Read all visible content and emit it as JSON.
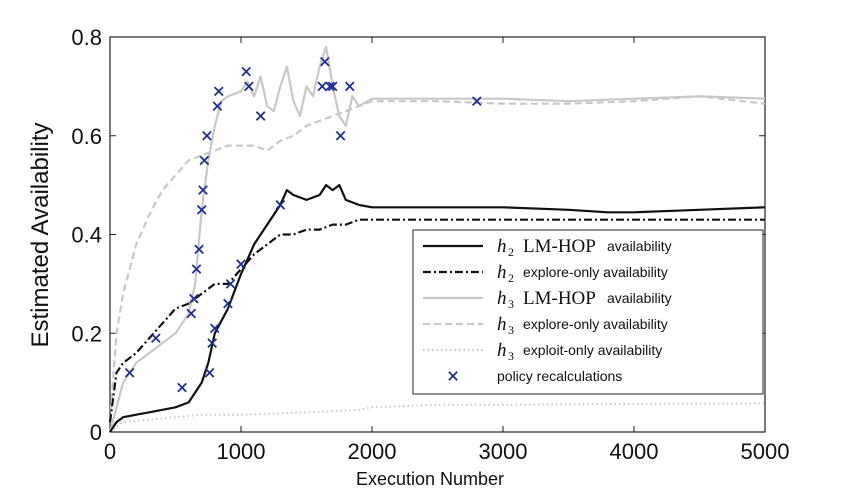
{
  "chart_data": {
    "type": "line",
    "xlabel": "Execution Number",
    "ylabel": "Estimated Availability",
    "xlim": [
      0,
      5000
    ],
    "ylim": [
      0,
      0.8
    ],
    "xticks": [
      "0",
      "1000",
      "2000",
      "3000",
      "4000",
      "5000"
    ],
    "yticks": [
      "0",
      "0.2",
      "0.4",
      "0.6",
      "0.8"
    ],
    "legend_position": "center-right",
    "series": [
      {
        "key": "h2_lmhop",
        "label_sym": "h",
        "label_sub": "2",
        "label_method": "LM-HOP",
        "label_suffix": "availability",
        "color": "#111111",
        "dash": "solid",
        "points": [
          [
            0,
            0.0
          ],
          [
            50,
            0.02
          ],
          [
            100,
            0.03
          ],
          [
            200,
            0.035
          ],
          [
            300,
            0.04
          ],
          [
            400,
            0.045
          ],
          [
            500,
            0.05
          ],
          [
            600,
            0.06
          ],
          [
            650,
            0.08
          ],
          [
            700,
            0.1
          ],
          [
            750,
            0.14
          ],
          [
            800,
            0.2
          ],
          [
            900,
            0.25
          ],
          [
            1000,
            0.32
          ],
          [
            1100,
            0.38
          ],
          [
            1200,
            0.42
          ],
          [
            1300,
            0.46
          ],
          [
            1350,
            0.49
          ],
          [
            1400,
            0.48
          ],
          [
            1500,
            0.47
          ],
          [
            1600,
            0.48
          ],
          [
            1650,
            0.5
          ],
          [
            1700,
            0.49
          ],
          [
            1750,
            0.5
          ],
          [
            1800,
            0.47
          ],
          [
            1900,
            0.46
          ],
          [
            2000,
            0.455
          ],
          [
            2500,
            0.455
          ],
          [
            3000,
            0.455
          ],
          [
            3500,
            0.45
          ],
          [
            3800,
            0.445
          ],
          [
            4000,
            0.445
          ],
          [
            4500,
            0.45
          ],
          [
            5000,
            0.455
          ]
        ]
      },
      {
        "key": "h2_explore",
        "label_sym": "h",
        "label_sub": "2",
        "label_method": "",
        "label_suffix": "explore-only availability",
        "color": "#111111",
        "dash": "dashdot",
        "points": [
          [
            0,
            0.02
          ],
          [
            50,
            0.12
          ],
          [
            100,
            0.14
          ],
          [
            200,
            0.16
          ],
          [
            300,
            0.19
          ],
          [
            400,
            0.22
          ],
          [
            500,
            0.25
          ],
          [
            600,
            0.26
          ],
          [
            700,
            0.28
          ],
          [
            800,
            0.3
          ],
          [
            900,
            0.3
          ],
          [
            1000,
            0.33
          ],
          [
            1100,
            0.36
          ],
          [
            1200,
            0.38
          ],
          [
            1300,
            0.4
          ],
          [
            1400,
            0.4
          ],
          [
            1500,
            0.41
          ],
          [
            1600,
            0.41
          ],
          [
            1700,
            0.42
          ],
          [
            1800,
            0.42
          ],
          [
            1900,
            0.43
          ],
          [
            2000,
            0.43
          ],
          [
            3000,
            0.43
          ],
          [
            4000,
            0.43
          ],
          [
            5000,
            0.43
          ]
        ]
      },
      {
        "key": "h3_lmhop",
        "label_sym": "h",
        "label_sub": "3",
        "label_method": "LM-HOP",
        "label_suffix": "availability",
        "color": "#c8c8c8",
        "dash": "solid",
        "points": [
          [
            0,
            0.0
          ],
          [
            100,
            0.1
          ],
          [
            200,
            0.14
          ],
          [
            300,
            0.16
          ],
          [
            400,
            0.18
          ],
          [
            500,
            0.2
          ],
          [
            600,
            0.24
          ],
          [
            650,
            0.3
          ],
          [
            700,
            0.45
          ],
          [
            750,
            0.55
          ],
          [
            800,
            0.62
          ],
          [
            850,
            0.67
          ],
          [
            900,
            0.68
          ],
          [
            1000,
            0.69
          ],
          [
            1050,
            0.71
          ],
          [
            1100,
            0.68
          ],
          [
            1150,
            0.72
          ],
          [
            1200,
            0.66
          ],
          [
            1250,
            0.65
          ],
          [
            1300,
            0.7
          ],
          [
            1350,
            0.74
          ],
          [
            1400,
            0.67
          ],
          [
            1450,
            0.64
          ],
          [
            1500,
            0.7
          ],
          [
            1550,
            0.68
          ],
          [
            1600,
            0.74
          ],
          [
            1650,
            0.78
          ],
          [
            1700,
            0.7
          ],
          [
            1750,
            0.64
          ],
          [
            1800,
            0.62
          ],
          [
            1850,
            0.68
          ],
          [
            1900,
            0.66
          ],
          [
            2000,
            0.675
          ],
          [
            2500,
            0.675
          ],
          [
            3000,
            0.675
          ],
          [
            3500,
            0.67
          ],
          [
            4000,
            0.675
          ],
          [
            4500,
            0.68
          ],
          [
            5000,
            0.675
          ]
        ]
      },
      {
        "key": "h3_explore",
        "label_sym": "h",
        "label_sub": "3",
        "label_method": "",
        "label_suffix": "explore-only availability",
        "color": "#c8c8c8",
        "dash": "dashed",
        "points": [
          [
            0,
            0.02
          ],
          [
            50,
            0.2
          ],
          [
            100,
            0.28
          ],
          [
            200,
            0.38
          ],
          [
            300,
            0.44
          ],
          [
            400,
            0.49
          ],
          [
            500,
            0.52
          ],
          [
            600,
            0.55
          ],
          [
            700,
            0.56
          ],
          [
            800,
            0.57
          ],
          [
            900,
            0.58
          ],
          [
            1000,
            0.58
          ],
          [
            1100,
            0.58
          ],
          [
            1200,
            0.57
          ],
          [
            1300,
            0.59
          ],
          [
            1400,
            0.6
          ],
          [
            1500,
            0.62
          ],
          [
            1600,
            0.63
          ],
          [
            1700,
            0.64
          ],
          [
            1800,
            0.65
          ],
          [
            1900,
            0.66
          ],
          [
            2000,
            0.67
          ],
          [
            2500,
            0.67
          ],
          [
            3000,
            0.665
          ],
          [
            3500,
            0.665
          ],
          [
            4000,
            0.67
          ],
          [
            4500,
            0.68
          ],
          [
            5000,
            0.665
          ]
        ]
      },
      {
        "key": "h3_exploit",
        "label_sym": "h",
        "label_sub": "3",
        "label_method": "",
        "label_suffix": "exploit-only availability",
        "color": "#c8c8c8",
        "dash": "dotted",
        "points": [
          [
            0,
            0.0
          ],
          [
            100,
            0.02
          ],
          [
            300,
            0.025
          ],
          [
            500,
            0.03
          ],
          [
            700,
            0.035
          ],
          [
            1000,
            0.035
          ],
          [
            1500,
            0.04
          ],
          [
            1900,
            0.045
          ],
          [
            2000,
            0.05
          ],
          [
            2500,
            0.055
          ],
          [
            3000,
            0.055
          ],
          [
            4000,
            0.057
          ],
          [
            5000,
            0.058
          ]
        ]
      }
    ],
    "markers": {
      "label": "policy recalculations",
      "color": "#1f2f8f",
      "points": [
        [
          150,
          0.12
        ],
        [
          350,
          0.19
        ],
        [
          550,
          0.09
        ],
        [
          620,
          0.24
        ],
        [
          640,
          0.27
        ],
        [
          660,
          0.33
        ],
        [
          680,
          0.37
        ],
        [
          700,
          0.45
        ],
        [
          710,
          0.49
        ],
        [
          720,
          0.55
        ],
        [
          740,
          0.6
        ],
        [
          760,
          0.12
        ],
        [
          780,
          0.18
        ],
        [
          800,
          0.21
        ],
        [
          820,
          0.66
        ],
        [
          830,
          0.69
        ],
        [
          900,
          0.26
        ],
        [
          920,
          0.3
        ],
        [
          1000,
          0.34
        ],
        [
          1040,
          0.73
        ],
        [
          1060,
          0.7
        ],
        [
          1150,
          0.64
        ],
        [
          1300,
          0.46
        ],
        [
          1620,
          0.7
        ],
        [
          1640,
          0.75
        ],
        [
          1680,
          0.7
        ],
        [
          1700,
          0.7
        ],
        [
          1760,
          0.6
        ],
        [
          1830,
          0.7
        ],
        [
          2800,
          0.67
        ]
      ]
    }
  }
}
